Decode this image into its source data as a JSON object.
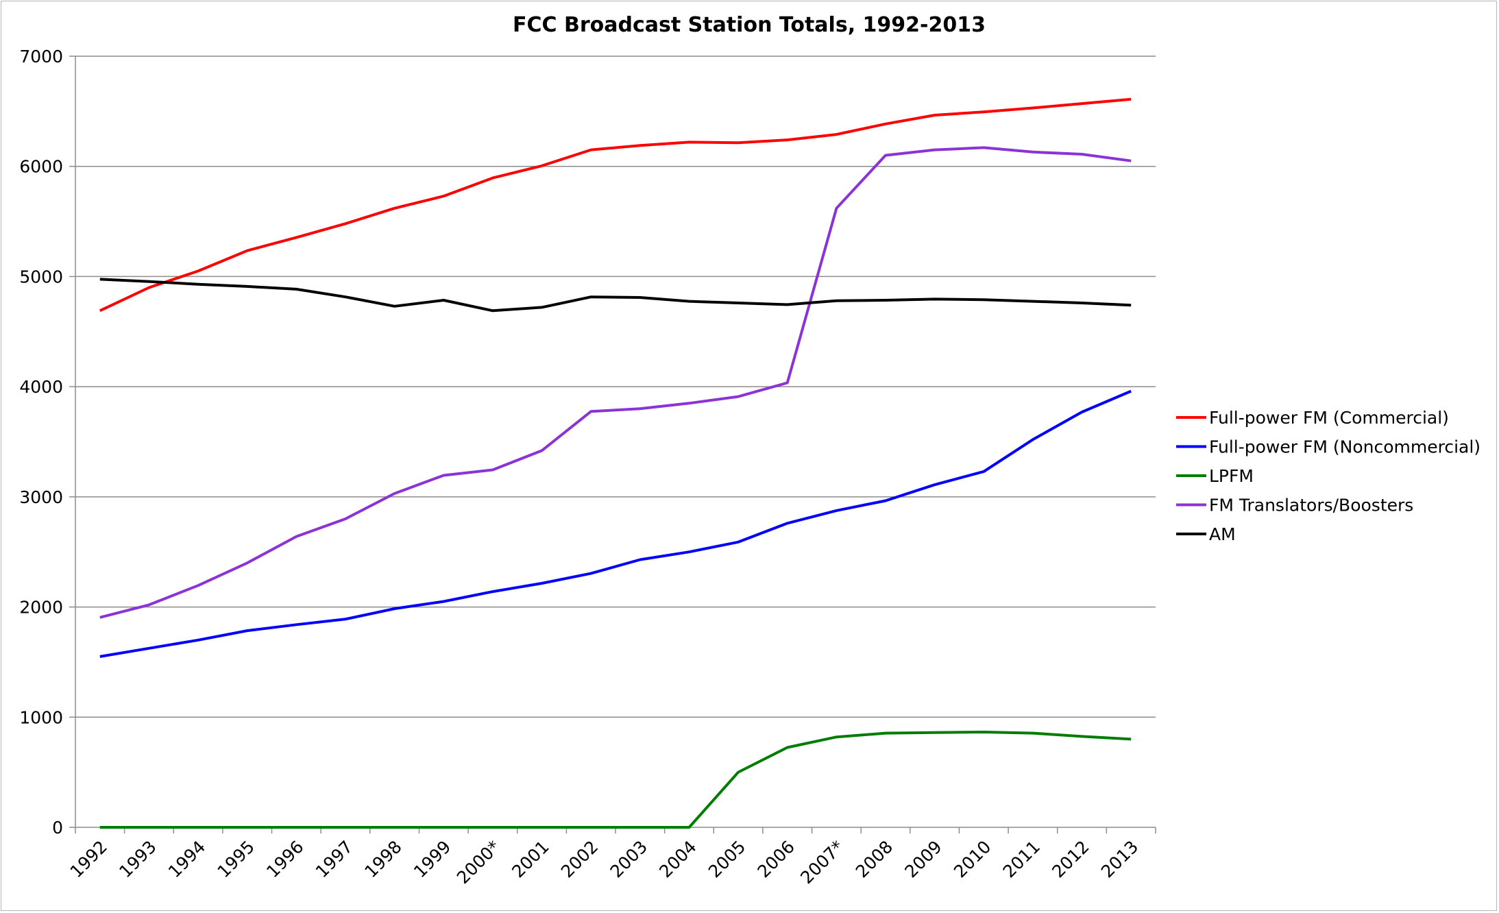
{
  "chart_data": {
    "type": "line",
    "title": "FCC Broadcast Station Totals, 1992-2013",
    "xlabel": "",
    "ylabel": "",
    "ylim": [
      0,
      7000
    ],
    "yticks": [
      "0",
      "1000",
      "2000",
      "3000",
      "4000",
      "5000",
      "6000",
      "7000"
    ],
    "grid": true,
    "legend_position": "right",
    "categories": [
      "1992",
      "1993",
      "1994",
      "1995",
      "1996",
      "1997",
      "1998",
      "1999",
      "2000*",
      "2001",
      "2002",
      "2003",
      "2004",
      "2005",
      "2006",
      "2007*",
      "2008",
      "2009",
      "2010",
      "2011",
      "2012",
      "2013"
    ],
    "series": [
      {
        "name": "Full-power FM (Commercial)",
        "color": "#ff0000",
        "values": [
          4690,
          4900,
          5050,
          5235,
          5355,
          5480,
          5620,
          5730,
          5895,
          6005,
          6150,
          6190,
          6220,
          6215,
          6240,
          6290,
          6385,
          6465,
          6495,
          6530,
          6570,
          6610
        ]
      },
      {
        "name": "Full-power FM (Noncommercial)",
        "color": "#0000ff",
        "values": [
          1550,
          1625,
          1700,
          1785,
          1840,
          1890,
          1985,
          2050,
          2140,
          2215,
          2305,
          2430,
          2500,
          2590,
          2760,
          2875,
          2965,
          3110,
          3230,
          3520,
          3770,
          3960
        ]
      },
      {
        "name": "LPFM",
        "color": "#007d00",
        "values": [
          0,
          0,
          0,
          0,
          0,
          0,
          0,
          0,
          0,
          0,
          0,
          0,
          0,
          500,
          725,
          820,
          855,
          860,
          865,
          855,
          825,
          800
        ]
      },
      {
        "name": "FM Translators/Boosters",
        "color": "#8b33d6",
        "values": [
          1905,
          2020,
          2195,
          2400,
          2640,
          2800,
          3030,
          3195,
          3245,
          3420,
          3775,
          3800,
          3850,
          3910,
          4035,
          5620,
          6100,
          6150,
          6170,
          6130,
          6110,
          6050
        ]
      },
      {
        "name": "AM",
        "color": "#000000",
        "values": [
          4975,
          4955,
          4930,
          4910,
          4885,
          4815,
          4730,
          4785,
          4690,
          4720,
          4815,
          4810,
          4775,
          4760,
          4745,
          4780,
          4785,
          4795,
          4790,
          4775,
          4760,
          4740
        ]
      }
    ]
  }
}
